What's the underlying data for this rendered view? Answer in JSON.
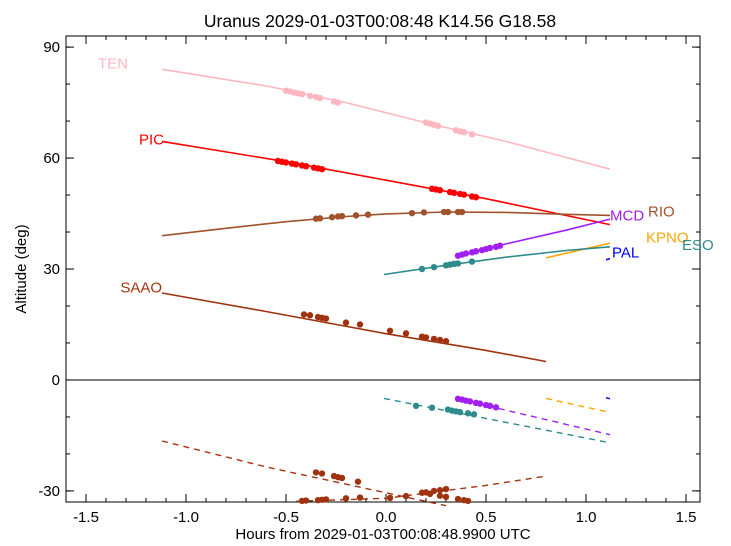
{
  "chart_data": {
    "type": "line",
    "title": "Uranus 2029-01-03T00:08:48  K14.56  G18.58",
    "xlabel": "Hours from 2029-01-03T00:08:48.9900 UTC",
    "ylabel": "Altitude (deg)",
    "xlim": [
      -1.6,
      1.57
    ],
    "ylim": [
      -33,
      93
    ],
    "x_ticks": [
      -1.5,
      -1.0,
      -0.5,
      0.0,
      0.5,
      1.0,
      1.5
    ],
    "x_tick_labels": [
      "-1.5",
      "-1.0",
      "-0.5",
      "0.0",
      "0.5",
      "1.0",
      "1.5"
    ],
    "y_ticks": [
      -30,
      0,
      30,
      60,
      90
    ],
    "y_tick_labels": [
      "-30",
      "0",
      "30",
      "60",
      "90"
    ],
    "zero_line": true,
    "grid": false,
    "series": [
      {
        "name": "TEN",
        "color": "#ffb6c1",
        "label_pos": [
          -1.3,
          85.5
        ],
        "x": [
          -1.12,
          -0.6,
          -0.2,
          0.2,
          0.6,
          1.12
        ],
        "y": [
          84.0,
          79.5,
          75.0,
          69.5,
          64.5,
          57.0
        ],
        "obs_x": [
          -0.5,
          -0.48,
          -0.46,
          -0.44,
          -0.42,
          -0.38,
          -0.35,
          -0.33,
          -0.26,
          -0.24,
          0.2,
          0.22,
          0.24,
          0.26,
          0.35,
          0.37,
          0.39,
          0.43
        ],
        "obs_y": [
          78.2,
          78.0,
          77.7,
          77.5,
          77.3,
          76.8,
          76.5,
          76.2,
          75.3,
          75.0,
          69.6,
          69.3,
          69.0,
          68.7,
          67.5,
          67.2,
          67.0,
          66.4
        ],
        "dashed_x": [],
        "dashed_y": []
      },
      {
        "name": "PIC",
        "color": "#ff0000",
        "label_pos": [
          -1.12,
          65
        ],
        "x": [
          -1.12,
          -0.5,
          0.0,
          0.5,
          1.12
        ],
        "y": [
          64.5,
          59.0,
          54.0,
          49.0,
          42.0
        ],
        "obs_x": [
          -0.54,
          -0.52,
          -0.5,
          -0.47,
          -0.45,
          -0.42,
          -0.4,
          -0.36,
          -0.34,
          -0.32,
          0.23,
          0.25,
          0.27,
          0.32,
          0.34,
          0.37,
          0.39,
          0.43,
          0.45
        ],
        "obs_y": [
          59.2,
          59.0,
          58.8,
          58.5,
          58.3,
          58.0,
          57.8,
          57.4,
          57.2,
          57.0,
          51.7,
          51.5,
          51.3,
          50.8,
          50.6,
          50.3,
          50.1,
          49.6,
          49.4
        ],
        "dashed_x": [],
        "dashed_y": []
      },
      {
        "name": "RIO",
        "color": "#a0522d",
        "label_pos": [
          1.31,
          45.5
        ],
        "x": [
          -1.12,
          -0.8,
          -0.5,
          -0.2,
          0.0,
          0.3,
          0.6,
          0.9,
          1.12
        ],
        "y": [
          39.0,
          41.0,
          42.8,
          44.2,
          44.9,
          45.4,
          45.3,
          44.8,
          44.5
        ],
        "obs_x": [
          -0.35,
          -0.33,
          -0.27,
          -0.24,
          -0.22,
          -0.15,
          -0.09,
          0.13,
          0.19,
          0.29,
          0.31,
          0.36,
          0.38
        ],
        "obs_y": [
          43.6,
          43.7,
          44.0,
          44.2,
          44.3,
          44.5,
          44.7,
          45.1,
          45.3,
          45.4,
          45.4,
          45.4,
          45.4
        ],
        "dashed_x": [],
        "dashed_y": []
      },
      {
        "name": "MCD",
        "color": "#a020f0",
        "label_pos": [
          1.12,
          44.5
        ],
        "x": [
          0.35,
          0.6,
          0.9,
          1.12
        ],
        "y": [
          33.5,
          36.8,
          40.5,
          43.5
        ],
        "obs_x": [
          0.36,
          0.38,
          0.4,
          0.43,
          0.45,
          0.48,
          0.5,
          0.52,
          0.55,
          0.57
        ],
        "obs_y": [
          33.6,
          33.9,
          34.2,
          34.5,
          34.8,
          35.1,
          35.4,
          35.7,
          36.0,
          36.3
        ],
        "dashed_x": [
          0.35,
          1.12
        ],
        "dashed_y": [
          -5.0,
          -14.8
        ],
        "dashed_obs_x": [
          0.36,
          0.38,
          0.4,
          0.42,
          0.45,
          0.47,
          0.5,
          0.52,
          0.55
        ],
        "dashed_obs_y": [
          -5.1,
          -5.3,
          -5.6,
          -5.8,
          -6.2,
          -6.4,
          -6.8,
          -7.0,
          -7.4
        ]
      },
      {
        "name": "KPNO",
        "color": "#ffa500",
        "label_pos": [
          1.3,
          38.5
        ],
        "x": [
          0.8,
          1.12
        ],
        "y": [
          33.0,
          37.0
        ],
        "obs_x": [],
        "obs_y": [],
        "dashed_x": [
          0.8,
          1.12
        ],
        "dashed_y": [
          -5.0,
          -8.8
        ]
      },
      {
        "name": "ESO",
        "color": "#2e8b8b",
        "label_pos": [
          1.48,
          36.5
        ],
        "x": [
          -0.01,
          0.3,
          0.6,
          0.9,
          1.12
        ],
        "y": [
          28.5,
          31.0,
          33.2,
          35.0,
          36.0
        ],
        "obs_x": [
          0.18,
          0.24,
          0.3,
          0.32,
          0.34,
          0.36,
          0.43
        ],
        "obs_y": [
          30.0,
          30.5,
          31.0,
          31.2,
          31.4,
          31.5,
          32.0
        ],
        "dashed_x": [
          -0.01,
          1.12
        ],
        "dashed_y": [
          -5.0,
          -17.0
        ],
        "dashed_obs_x": [
          0.15,
          0.23,
          0.31,
          0.33,
          0.35,
          0.37,
          0.41,
          0.44
        ],
        "dashed_obs_y": [
          -7.0,
          -7.5,
          -8.0,
          -8.3,
          -8.5,
          -8.7,
          -9.0,
          -9.3
        ]
      },
      {
        "name": "PAL",
        "color": "#0000ff",
        "label_pos": [
          1.13,
          34.5
        ],
        "x": [
          1.1,
          1.12
        ],
        "y": [
          32.5,
          32.8
        ],
        "obs_x": [],
        "obs_y": [],
        "dashed_x": [
          1.1,
          1.12
        ],
        "dashed_y": [
          -4.8,
          -5.1
        ]
      },
      {
        "name": "SAAO",
        "color": "#a0330f",
        "label_pos": [
          -1.13,
          25
        ],
        "x": [
          -1.12,
          -0.6,
          0.0,
          0.5,
          0.8
        ],
        "y": [
          23.5,
          18.5,
          12.5,
          8.0,
          5.0
        ],
        "obs_x": [
          -0.41,
          -0.38,
          -0.34,
          -0.32,
          -0.3,
          -0.2,
          -0.13,
          0.02,
          0.1,
          0.18,
          0.2,
          0.24,
          0.27,
          0.3
        ],
        "obs_y": [
          17.7,
          17.5,
          17.0,
          16.8,
          16.6,
          15.5,
          15.0,
          13.3,
          12.6,
          11.7,
          11.5,
          11.1,
          10.8,
          10.5
        ],
        "dashed_x": [
          -1.12,
          -0.6,
          0.0,
          0.3
        ],
        "dashed_y": [
          -16.5,
          -23.5,
          -30.5,
          -34.0
        ],
        "dashed_obs_x": [
          -0.35,
          -0.32,
          -0.26,
          -0.24,
          -0.22,
          -0.14,
          0.22,
          0.27,
          0.3,
          0.36,
          0.39,
          0.41
        ],
        "dashed_obs_y": [
          -25.0,
          -25.3,
          -26.0,
          -26.3,
          -26.5,
          -27.5,
          -30.8,
          -31.3,
          -31.6,
          -32.2,
          -32.5,
          -32.7
        ]
      },
      {
        "name": "",
        "color": "#a0330f",
        "label_pos": [],
        "x": [],
        "y": [],
        "obs_x": [],
        "obs_y": [],
        "dashed_x": [
          -0.45,
          0.0,
          0.5,
          0.8
        ],
        "dashed_y": [
          -32.8,
          -32.0,
          -28.5,
          -26.0
        ],
        "dashed_obs_x": [
          -0.42,
          -0.4,
          -0.34,
          -0.32,
          -0.3,
          -0.2,
          -0.13,
          0.02,
          0.1,
          0.18,
          0.2,
          0.24,
          0.27,
          0.3
        ],
        "dashed_obs_y": [
          -32.7,
          -32.6,
          -32.5,
          -32.4,
          -32.3,
          -32.0,
          -31.8,
          -31.9,
          -31.4,
          -30.5,
          -30.4,
          -30.0,
          -29.8,
          -29.5
        ]
      }
    ]
  }
}
